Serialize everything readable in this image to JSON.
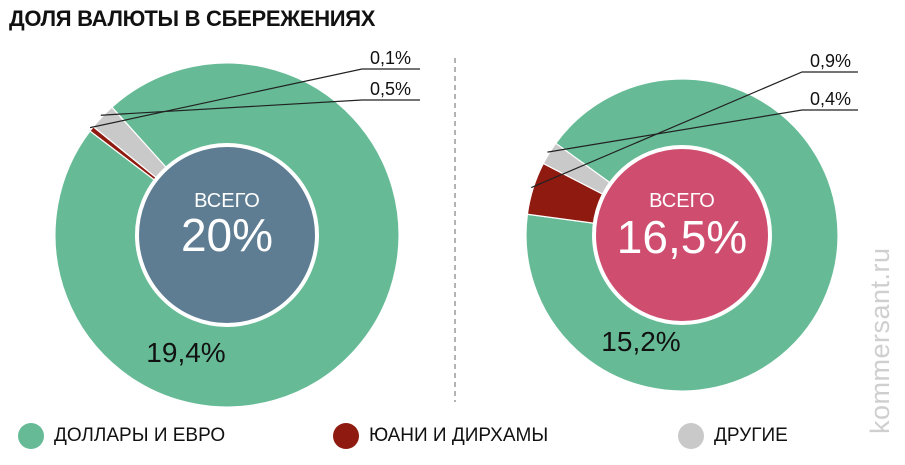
{
  "title": "ДОЛЯ ВАЛЮТЫ В СБЕРЕЖЕНИЯХ",
  "watermark": "kommersant.ru",
  "colors": {
    "usd_eur": "#66bb96",
    "cny_aed": "#8f1a10",
    "other": "#c9c9c9",
    "center_left": "#5e7d93",
    "center_right": "#cf4e70",
    "divider": "#9a9a9a"
  },
  "legend": [
    {
      "label": "ДОЛЛАРЫ И ЕВРО",
      "color": "#66bb96"
    },
    {
      "label": "ЮАНИ И ДИРХАМЫ",
      "color": "#8f1a10"
    },
    {
      "label": "ДРУГИЕ",
      "color": "#c9c9c9"
    }
  ],
  "chart_data": [
    {
      "type": "pie",
      "center_label": "ВСЕГО",
      "total": "20%",
      "categories": [
        "ДОЛЛАРЫ И ЕВРО",
        "ЮАНИ И ДИРХАМЫ",
        "ДРУГИЕ"
      ],
      "values": [
        19.4,
        0.1,
        0.5
      ],
      "labels": [
        "19,4%",
        "0,1%",
        "0,5%"
      ],
      "colors": [
        "#66bb96",
        "#8f1a10",
        "#c9c9c9"
      ]
    },
    {
      "type": "pie",
      "center_label": "ВСЕГО",
      "total": "16,5%",
      "categories": [
        "ДОЛЛАРЫ И ЕВРО",
        "ЮАНИ И ДИРХАМЫ",
        "ДРУГИЕ"
      ],
      "values": [
        15.2,
        0.9,
        0.4
      ],
      "labels": [
        "15,2%",
        "0,9%",
        "0,4%"
      ],
      "colors": [
        "#66bb96",
        "#8f1a10",
        "#c9c9c9"
      ]
    }
  ]
}
